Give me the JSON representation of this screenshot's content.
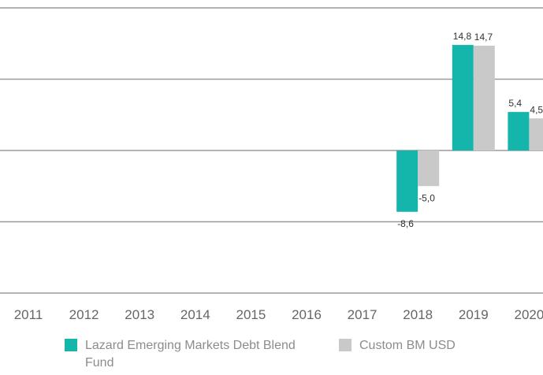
{
  "chart_data": {
    "type": "bar",
    "categories": [
      "2011",
      "2012",
      "2013",
      "2014",
      "2015",
      "2016",
      "2017",
      "2018",
      "2019",
      "2020"
    ],
    "series": [
      {
        "name": "Lazard Emerging Markets Debt Blend Fund",
        "color": "#14b5ab",
        "values": [
          null,
          null,
          null,
          null,
          null,
          null,
          null,
          -8.6,
          14.8,
          5.4
        ],
        "labels": [
          "",
          "",
          "",
          "",
          "",
          "",
          "",
          "-8,6",
          "14,8",
          "5,4"
        ]
      },
      {
        "name": "Custom BM USD",
        "color": "#c9c9c9",
        "values": [
          null,
          null,
          null,
          null,
          null,
          null,
          null,
          -5.0,
          14.7,
          4.5
        ],
        "labels": [
          "",
          "",
          "",
          "",
          "",
          "",
          "",
          "-5,0",
          "14,7",
          "4,5"
        ]
      }
    ],
    "ylim": [
      -20,
      20
    ],
    "grid": true,
    "legend_position": "bottom"
  }
}
